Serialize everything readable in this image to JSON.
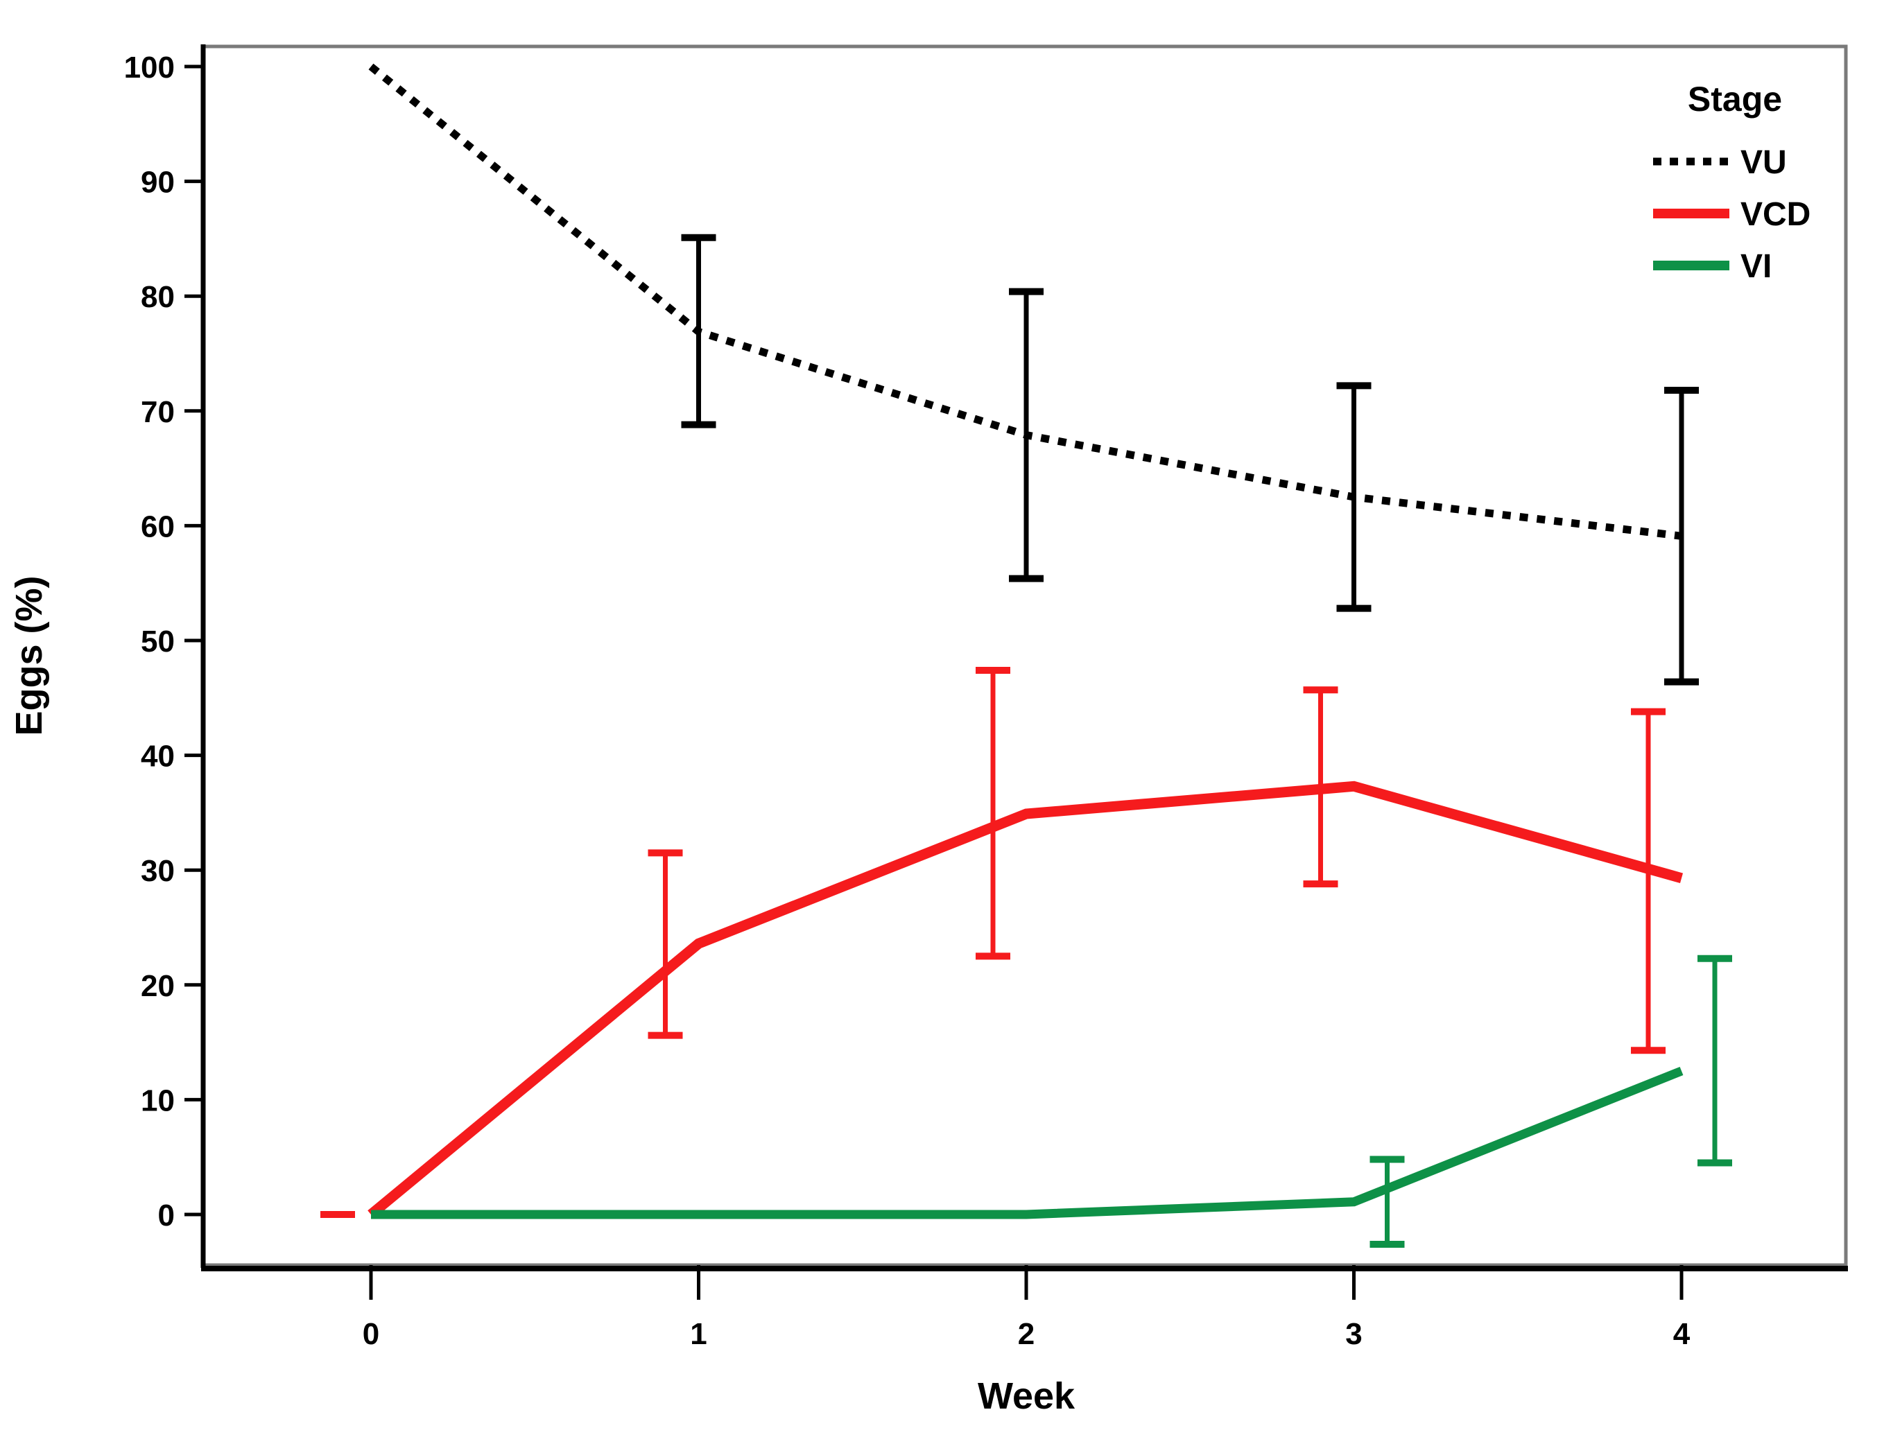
{
  "chart_data": {
    "type": "line",
    "title": "",
    "xlabel": "Week",
    "ylabel": "Eggs (%)",
    "legend_title": "Stage",
    "legend_position": "top-right-inside",
    "grid": false,
    "x": [
      0,
      1,
      2,
      3,
      4
    ],
    "x_tick_labels": [
      "0",
      "1",
      "2",
      "3",
      "4"
    ],
    "y_ticks": [
      0,
      10,
      20,
      30,
      40,
      50,
      60,
      70,
      80,
      90,
      100
    ],
    "ylim": [
      0,
      100
    ],
    "frame_color": "#7a7a7a",
    "axis_color": "#000000",
    "series": [
      {
        "name": "VU",
        "color": "#000000",
        "line_style": "dotted",
        "values": [
          100,
          76.9,
          67.9,
          62.5,
          59.1
        ],
        "ci_low": [
          null,
          68.8,
          55.4,
          52.8,
          46.4
        ],
        "ci_high": [
          null,
          85.1,
          80.4,
          72.2,
          71.8
        ]
      },
      {
        "name": "VCD",
        "color": "#f51b1d",
        "line_style": "solid",
        "values": [
          0,
          23.6,
          34.9,
          37.3,
          29.3
        ],
        "ci_low": [
          0,
          15.6,
          22.5,
          28.8,
          14.3
        ],
        "ci_high": [
          0,
          31.5,
          47.4,
          45.7,
          43.8
        ]
      },
      {
        "name": "VI",
        "color": "#0e9147",
        "line_style": "solid",
        "values": [
          0,
          0,
          0,
          1.1,
          12.5
        ],
        "ci_low": [
          null,
          null,
          null,
          -2.6,
          4.5
        ],
        "ci_high": [
          null,
          null,
          null,
          4.8,
          22.3
        ]
      }
    ]
  }
}
